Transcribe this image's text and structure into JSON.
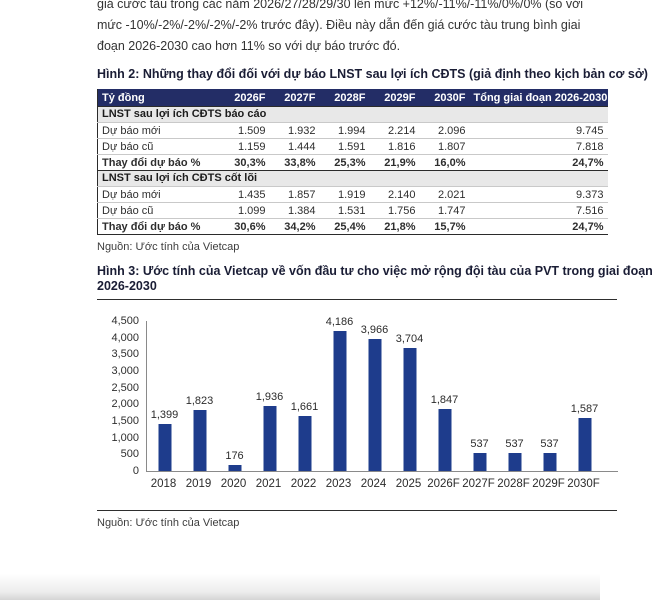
{
  "intro": {
    "lines": [
      "giá cước tàu trong các năm 2026/27/28/29/30 lên mức +12%/-11%/-11%/0%/0% (so với",
      "mức -10%/-2%/-2%/-2%/-2% trước đây). Điều này dẫn đến giá cước tàu trung bình giai",
      "đoạn 2026-2030 cao hơn 11% so với dự báo trước đó."
    ]
  },
  "fig2": {
    "title": "Hình 2: Những thay đổi đối với dự báo LNST sau lợi ích CĐTS (giả định theo kịch bản cơ sở)",
    "table": {
      "unit_header": "Tỷ đồng",
      "col_headers": [
        "2026F",
        "2027F",
        "2028F",
        "2029F",
        "2030F",
        "Tổng giai đoạn 2026-2030"
      ],
      "sections": [
        {
          "header": "LNST sau lợi ích CĐTS báo cáo",
          "rows": [
            {
              "label": "Dự báo mới",
              "values": [
                "1.509",
                "1.932",
                "1.994",
                "2.214",
                "2.096",
                "9.745"
              ],
              "bold": false
            },
            {
              "label": "Dự báo cũ",
              "values": [
                "1.159",
                "1.444",
                "1.591",
                "1.816",
                "1.807",
                "7.818"
              ],
              "bold": false
            },
            {
              "label": "Thay đổi dự báo %",
              "values": [
                "30,3%",
                "33,8%",
                "25,3%",
                "21,9%",
                "16,0%",
                "24,7%"
              ],
              "bold": true
            }
          ]
        },
        {
          "header": "LNST sau lợi ích CĐTS cốt lõi",
          "rows": [
            {
              "label": "Dự báo mới",
              "values": [
                "1.435",
                "1.857",
                "1.919",
                "2.140",
                "2.021",
                "9.373"
              ],
              "bold": false
            },
            {
              "label": "Dự báo cũ",
              "values": [
                "1.099",
                "1.384",
                "1.531",
                "1.756",
                "1.747",
                "7.516"
              ],
              "bold": false
            },
            {
              "label": "Thay đổi dự báo %",
              "values": [
                "30,6%",
                "34,2%",
                "25,4%",
                "21,8%",
                "15,7%",
                "24,7%"
              ],
              "bold": true
            }
          ]
        }
      ]
    },
    "source": "Nguồn: Ước tính của Vietcap"
  },
  "fig3": {
    "title_line1": "Hình 3: Ước tính của Vietcap về vốn đầu tư cho việc mở rộng đội tàu của PVT trong giai đoạn",
    "title_line2": "2026-2030",
    "source": "Nguồn: Ước tính của Vietcap"
  },
  "chart_data": {
    "type": "bar",
    "title": "Ước tính của Vietcap về vốn đầu tư cho việc mở rộng đội tàu của PVT trong giai đoạn 2026-2030",
    "xlabel": "",
    "ylabel": "",
    "categories": [
      "2018",
      "2019",
      "2020",
      "2021",
      "2022",
      "2023",
      "2024",
      "2025",
      "2026F",
      "2027F",
      "2028F",
      "2029F",
      "2030F"
    ],
    "values": [
      1399,
      1823,
      176,
      1936,
      1661,
      4186,
      3966,
      3704,
      1847,
      537,
      537,
      537,
      1587
    ],
    "value_labels": [
      "1,399",
      "1,823",
      "176",
      "1,936",
      "1,661",
      "4,186",
      "3,966",
      "3,704",
      "1,847",
      "537",
      "537",
      "537",
      "1,587"
    ],
    "ylim": [
      0,
      4500
    ],
    "yticks": [
      "4,500",
      "4,000",
      "3,500",
      "3,000",
      "2,500",
      "2,000",
      "1,500",
      "1,000",
      "500",
      "0"
    ],
    "grid": false,
    "legend": "none",
    "bar_color": "#1E3C8C"
  },
  "colors": {
    "table_header_bg": "#232D66",
    "table_header_text": "#FFFFFF",
    "section_row_bg": "#E8E8E8",
    "bar": "#1E3C8C",
    "axis_line": "#8A8A8A",
    "divider": "#2E2E2E"
  }
}
